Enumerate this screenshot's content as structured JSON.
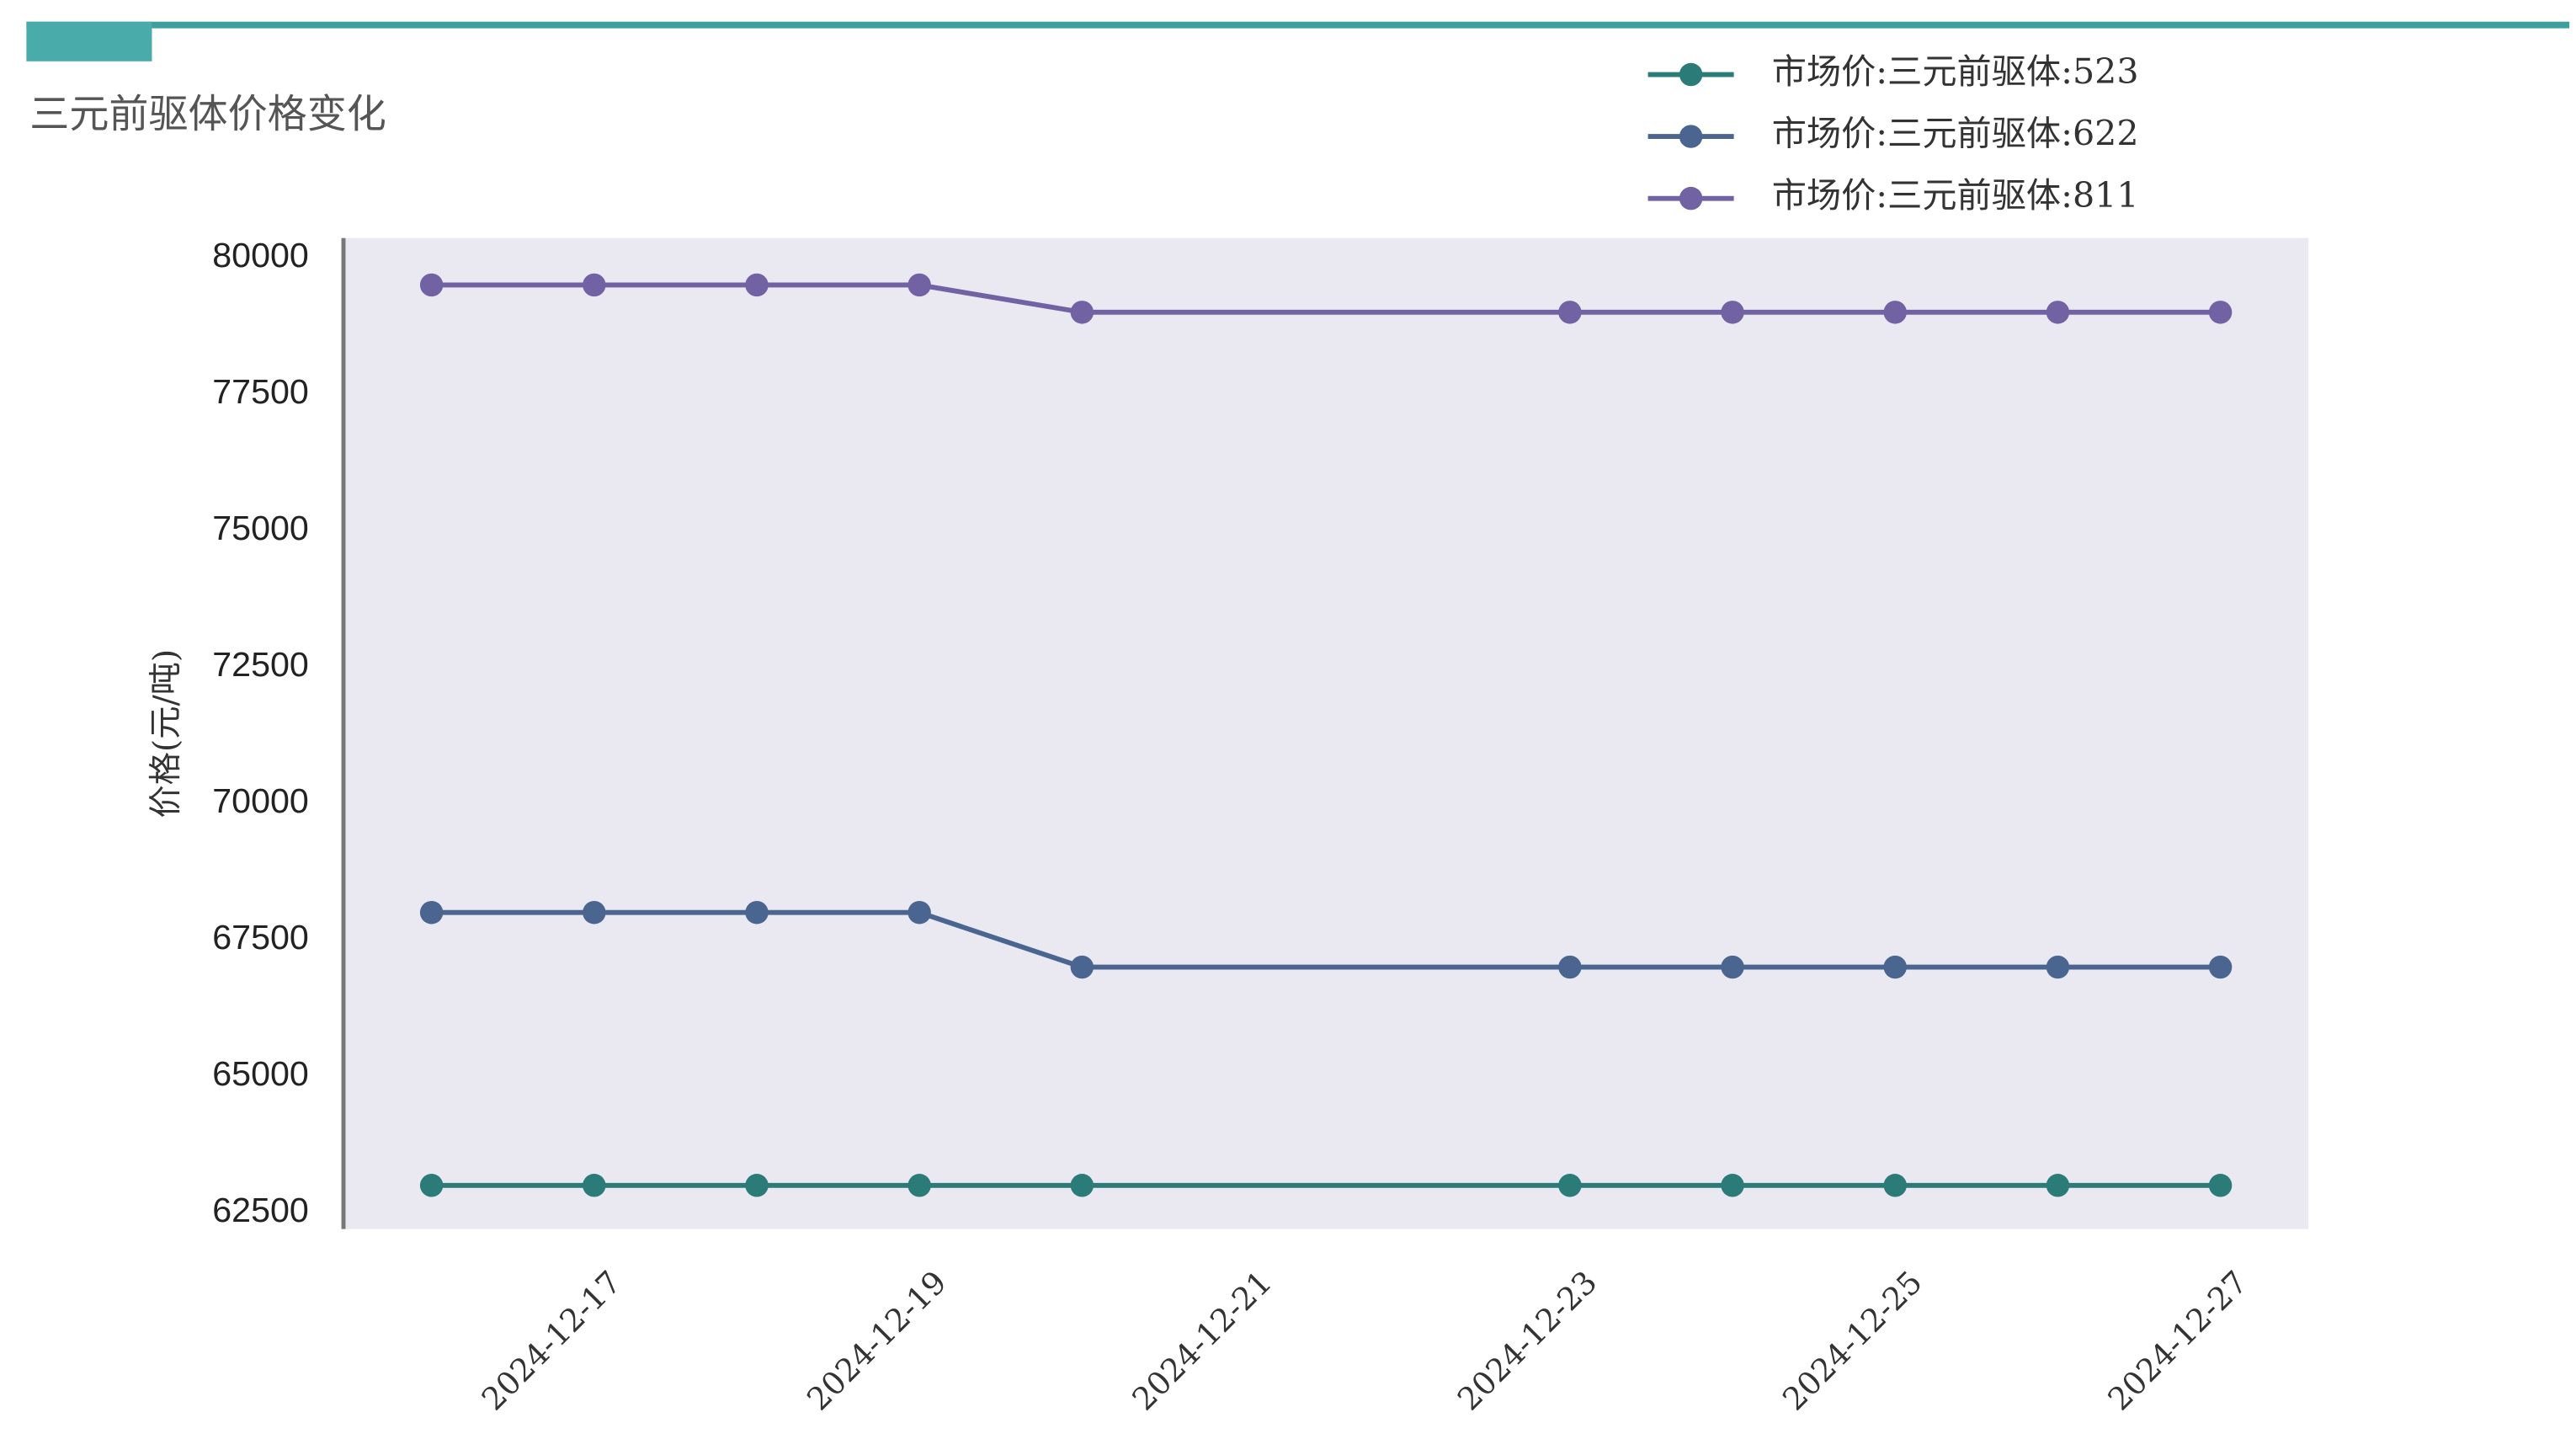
{
  "chart_data": {
    "type": "line",
    "title": "三元前驱体价格变化",
    "y_label": "价格(元/吨)",
    "x": [
      "2024-12-16",
      "2024-12-17",
      "2024-12-18",
      "2024-12-19",
      "2024-12-20",
      "2024-12-23",
      "2024-12-24",
      "2024-12-25",
      "2024-12-26",
      "2024-12-27"
    ],
    "series": [
      {
        "name": "市场价:三元前驱体:523",
        "color": "#2b7b78",
        "values": [
          63000,
          63000,
          63000,
          63000,
          63000,
          63000,
          63000,
          63000,
          63000,
          63000
        ]
      },
      {
        "name": "市场价:三元前驱体:622",
        "color": "#4a6590",
        "values": [
          68000,
          68000,
          68000,
          68000,
          67000,
          67000,
          67000,
          67000,
          67000,
          67000
        ]
      },
      {
        "name": "市场价:三元前驱体:811",
        "color": "#7162a3",
        "values": [
          79500,
          79500,
          79500,
          79500,
          79000,
          79000,
          79000,
          79000,
          79000,
          79000
        ]
      }
    ],
    "xlim": [
      "2024-12-15T11:00",
      "2024-12-27T13:00"
    ],
    "xticks": [
      "2024-12-17",
      "2024-12-19",
      "2024-12-21",
      "2024-12-23",
      "2024-12-25",
      "2024-12-27"
    ],
    "ylim": [
      62200,
      80360
    ],
    "yticks": [
      62500,
      65000,
      67500,
      70000,
      72500,
      75000,
      77500,
      80000
    ],
    "grid": false,
    "legend": "upper right",
    "plot_background": "#eae9f2"
  }
}
